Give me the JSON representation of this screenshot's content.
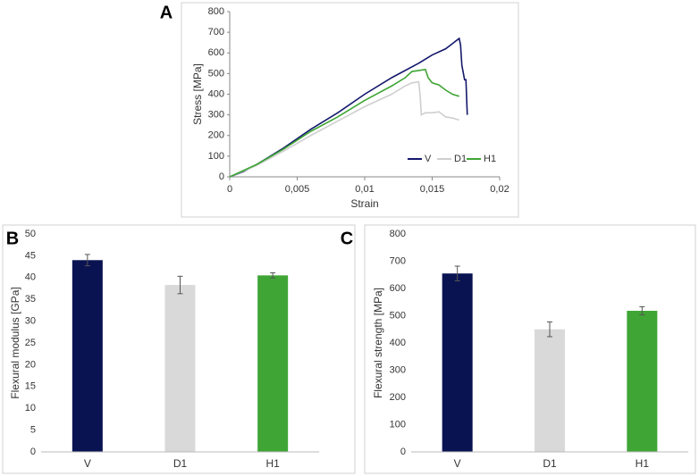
{
  "chart_data": [
    {
      "type": "line",
      "panel": "A",
      "x_label": "Strain",
      "y_label": "Stress [MPa]",
      "xlim": [
        0,
        0.02
      ],
      "xticks": [
        0,
        {
          "value": 0.005,
          "label": "0,005"
        },
        {
          "value": 0.01,
          "label": "0,01"
        },
        {
          "value": 0.015,
          "label": "0,015"
        },
        {
          "value": 0.02,
          "label": "0,02"
        }
      ],
      "ylim": [
        0,
        800
      ],
      "yticks": [
        0,
        100,
        200,
        300,
        400,
        500,
        600,
        700,
        800
      ],
      "grid": false,
      "legend": "lower right",
      "series": [
        {
          "name": "V",
          "color": "#14186b",
          "x": [
            0,
            0.001,
            0.002,
            0.004,
            0.006,
            0.008,
            0.01,
            0.012,
            0.014,
            0.0145,
            0.015,
            0.016,
            0.0165,
            0.017,
            0.0171,
            0.0172,
            0.0174,
            0.0175,
            0.0176
          ],
          "values": [
            0,
            25,
            60,
            140,
            230,
            310,
            400,
            480,
            550,
            570,
            590,
            620,
            645,
            670,
            640,
            540,
            470,
            470,
            300
          ]
        },
        {
          "name": "D1",
          "color": "#cfcfcf",
          "x": [
            0,
            0.002,
            0.004,
            0.006,
            0.008,
            0.01,
            0.012,
            0.013,
            0.0135,
            0.014,
            0.0141,
            0.0142,
            0.0145,
            0.015,
            0.0155,
            0.016,
            0.0165,
            0.017
          ],
          "values": [
            0,
            55,
            125,
            200,
            270,
            340,
            400,
            440,
            455,
            460,
            400,
            300,
            310,
            310,
            315,
            290,
            285,
            275
          ]
        },
        {
          "name": "H1",
          "color": "#3fa535",
          "x": [
            0,
            0.002,
            0.004,
            0.006,
            0.008,
            0.01,
            0.012,
            0.013,
            0.0135,
            0.014,
            0.0145,
            0.0147,
            0.015,
            0.0155,
            0.016,
            0.0165,
            0.017
          ],
          "values": [
            0,
            60,
            135,
            220,
            290,
            370,
            440,
            480,
            510,
            515,
            520,
            480,
            455,
            445,
            420,
            400,
            390
          ]
        }
      ]
    },
    {
      "type": "bar",
      "panel": "B",
      "y_label": "Flexural modulus [GPa]",
      "categories": [
        "V",
        "D1",
        "H1"
      ],
      "values": [
        44,
        38.3,
        40.5
      ],
      "errors": [
        1.3,
        2,
        0.6
      ],
      "colors": [
        "#0a1352",
        "#d9d9d9",
        "#3fa535"
      ],
      "ylim": [
        0,
        50
      ],
      "yticks": [
        0,
        5,
        10,
        15,
        20,
        25,
        30,
        35,
        40,
        45,
        50
      ],
      "grid": false
    },
    {
      "type": "bar",
      "panel": "C",
      "y_label": "Flexural strength [MPa]",
      "categories": [
        "V",
        "D1",
        "H1"
      ],
      "values": [
        655,
        450,
        518
      ],
      "errors": [
        27,
        27,
        15
      ],
      "colors": [
        "#0a1352",
        "#d9d9d9",
        "#3fa535"
      ],
      "ylim": [
        0,
        800
      ],
      "yticks": [
        0,
        100,
        200,
        300,
        400,
        500,
        600,
        700,
        800
      ],
      "grid": false
    }
  ]
}
